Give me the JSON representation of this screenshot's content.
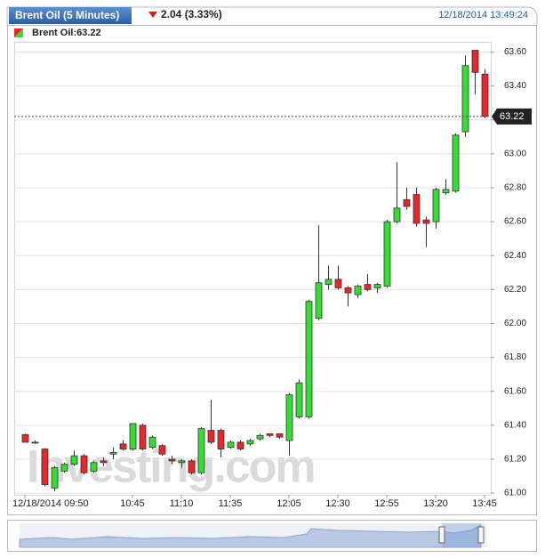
{
  "header": {
    "title": "Brent Oil (5 Minutes)",
    "change": "2.04 (3.33%)",
    "timestamp": "12/18/2014 13:49:24"
  },
  "chart_data": {
    "type": "candlestick",
    "legend": "Brent Oil:63.22",
    "watermark": "Investing.com",
    "categories": [
      "12/18/2014 09:50",
      null,
      null,
      null,
      null,
      null,
      null,
      null,
      null,
      null,
      null,
      "10:45",
      null,
      null,
      null,
      null,
      "11:10",
      null,
      null,
      null,
      null,
      "11:35",
      null,
      null,
      null,
      null,
      null,
      "12:05",
      null,
      null,
      null,
      null,
      "12:30",
      null,
      null,
      null,
      null,
      "12:55",
      null,
      null,
      null,
      null,
      "13:20",
      null,
      null,
      null,
      null,
      "13:45"
    ],
    "open": [
      61.345,
      61.3,
      61.26,
      61.03,
      61.13,
      61.17,
      61.22,
      61.13,
      61.19,
      61.23,
      61.29,
      61.26,
      61.4,
      61.27,
      61.28,
      61.2,
      61.18,
      61.19,
      61.12,
      61.37,
      61.37,
      61.27,
      61.3,
      61.29,
      61.32,
      61.35,
      61.35,
      61.31,
      61.45,
      61.45,
      62.03,
      62.23,
      62.26,
      62.21,
      62.17,
      62.23,
      62.21,
      62.22,
      62.6,
      62.73,
      62.76,
      62.61,
      62.6,
      62.77,
      62.78,
      63.13,
      63.61,
      63.47
    ],
    "high": [
      61.35,
      61.31,
      61.265,
      61.16,
      61.18,
      61.25,
      61.23,
      61.19,
      61.21,
      61.27,
      61.31,
      61.41,
      61.41,
      61.34,
      61.29,
      61.22,
      61.2,
      61.2,
      61.39,
      61.55,
      61.38,
      61.31,
      61.31,
      61.32,
      61.35,
      61.35,
      61.35,
      61.59,
      61.67,
      62.14,
      62.58,
      62.34,
      62.34,
      62.22,
      62.23,
      62.29,
      62.24,
      62.61,
      62.95,
      62.8,
      62.8,
      62.63,
      62.8,
      62.85,
      63.12,
      63.58,
      63.61,
      63.5
    ],
    "low": [
      61.3,
      61.29,
      61.04,
      61.01,
      61.12,
      61.16,
      61.11,
      61.12,
      61.16,
      61.2,
      61.25,
      61.25,
      61.25,
      61.26,
      61.22,
      61.17,
      61.15,
      61.11,
      61.11,
      61.29,
      61.21,
      61.26,
      61.25,
      61.28,
      61.31,
      61.33,
      61.32,
      61.22,
      61.44,
      61.44,
      62.02,
      62.2,
      62.2,
      62.1,
      62.15,
      62.19,
      62.18,
      62.21,
      62.59,
      62.67,
      62.57,
      62.45,
      62.56,
      62.76,
      62.77,
      63.1,
      63.35,
      63.21
    ],
    "close": [
      61.3,
      61.3,
      61.05,
      61.15,
      61.17,
      61.22,
      61.12,
      61.18,
      61.18,
      61.24,
      61.26,
      61.41,
      61.26,
      61.33,
      61.23,
      61.19,
      61.19,
      61.12,
      61.38,
      61.3,
      61.26,
      61.3,
      61.26,
      61.31,
      61.34,
      61.34,
      61.33,
      61.58,
      61.65,
      62.13,
      62.24,
      62.26,
      62.21,
      62.18,
      62.22,
      62.2,
      62.23,
      62.6,
      62.68,
      62.69,
      62.59,
      62.59,
      62.79,
      62.79,
      63.11,
      63.52,
      63.48,
      63.22
    ],
    "up_color": "#33dd33",
    "down_color": "#e8262b",
    "ylim": [
      60.99,
      63.66
    ],
    "yticks": [
      {
        "value": 61.0,
        "label": "61.00"
      },
      {
        "value": 61.2,
        "label": "61.20"
      },
      {
        "value": 61.4,
        "label": "61.40"
      },
      {
        "value": 61.6,
        "label": "61.60"
      },
      {
        "value": 61.8,
        "label": "61.80"
      },
      {
        "value": 62.0,
        "label": "62.00"
      },
      {
        "value": 62.2,
        "label": "62.20"
      },
      {
        "value": 62.4,
        "label": "62.40"
      },
      {
        "value": 62.6,
        "label": "62.60"
      },
      {
        "value": 62.8,
        "label": "62.80"
      },
      {
        "value": 63.0,
        "label": "63.00"
      },
      {
        "value": 63.2,
        "label": "63.20"
      },
      {
        "value": 63.4,
        "label": "63.40"
      },
      {
        "value": 63.6,
        "label": "63.60"
      }
    ],
    "last_price": 63.22,
    "grid": true
  }
}
